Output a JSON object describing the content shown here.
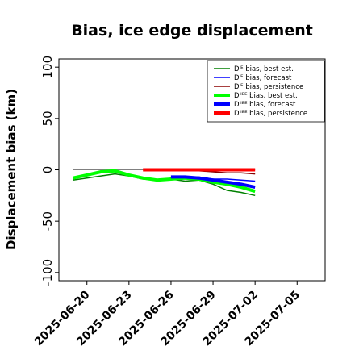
{
  "chart_data": {
    "type": "line",
    "title": "Bias, ice edge displacement",
    "xlabel": "",
    "ylabel": "Displacement bias (km)",
    "x_axis": {
      "type": "date",
      "range": [
        "2025-06-18",
        "2025-07-07"
      ],
      "ticks": [
        "2025-06-20",
        "2025-06-23",
        "2025-06-26",
        "2025-06-29",
        "2025-07-02",
        "2025-07-05"
      ],
      "highlight_tick": "2025-06-26",
      "highlight_color": "#228b22"
    },
    "y_axis": {
      "range": [
        -108,
        108
      ],
      "ticks": [
        -100,
        -50,
        0,
        50,
        100
      ]
    },
    "reference_line": {
      "y": 0,
      "color": "#808080"
    },
    "grid": false,
    "legend": {
      "placement": "top-right"
    },
    "series": [
      {
        "name": "Dᴵᴱ bias, best est.",
        "color": "#008000",
        "width": 1.5,
        "x": [
          "2025-06-19",
          "2025-06-20",
          "2025-06-21",
          "2025-06-22",
          "2025-06-23",
          "2025-06-24",
          "2025-06-25",
          "2025-06-26",
          "2025-06-27",
          "2025-06-28",
          "2025-06-29",
          "2025-06-30",
          "2025-07-01",
          "2025-07-02"
        ],
        "values": [
          -10,
          -8,
          -6,
          -4,
          -6,
          -9,
          -10,
          -9,
          -11,
          -10,
          -14,
          -20,
          -22,
          -25
        ]
      },
      {
        "name": "Dᴵᴱ bias, forecast",
        "color": "#0000ff",
        "width": 1.5,
        "x": [
          "2025-06-26",
          "2025-06-27",
          "2025-06-28",
          "2025-06-29",
          "2025-06-30",
          "2025-07-01",
          "2025-07-02"
        ],
        "values": [
          -8,
          -7,
          -7,
          -9,
          -9,
          -10,
          -11
        ]
      },
      {
        "name": "Dᴵᴱ bias, persistence",
        "color": "#8b0000",
        "width": 1.5,
        "x": [
          "2025-06-25",
          "2025-06-26",
          "2025-06-27",
          "2025-06-28",
          "2025-06-29",
          "2025-06-30",
          "2025-07-01",
          "2025-07-02"
        ],
        "values": [
          0,
          0,
          0,
          -1,
          -2,
          -3,
          -3,
          -4
        ]
      },
      {
        "name": "Dᴵᴵᴱᴱ bias, best est.",
        "color": "#00ff00",
        "width": 4,
        "x": [
          "2025-06-19",
          "2025-06-20",
          "2025-06-21",
          "2025-06-22",
          "2025-06-23",
          "2025-06-24",
          "2025-06-25",
          "2025-06-26",
          "2025-06-27",
          "2025-06-28",
          "2025-06-29",
          "2025-06-30",
          "2025-07-01",
          "2025-07-02"
        ],
        "values": [
          -8,
          -5,
          -2,
          -1,
          -5,
          -8,
          -10,
          -9,
          -8,
          -9,
          -12,
          -14,
          -17,
          -21
        ]
      },
      {
        "name": "Dᴵᴵᴱᴱ bias, forecast",
        "color": "#0000ff",
        "width": 4,
        "x": [
          "2025-06-26",
          "2025-06-27",
          "2025-06-28",
          "2025-06-29",
          "2025-06-30",
          "2025-07-01",
          "2025-07-02"
        ],
        "values": [
          -7,
          -7,
          -8,
          -10,
          -12,
          -14,
          -17
        ]
      },
      {
        "name": "Dᴵᴵᴱᴱ bias, persistence",
        "color": "#ff0000",
        "width": 4,
        "x": [
          "2025-06-24",
          "2025-06-25",
          "2025-06-26",
          "2025-06-27",
          "2025-06-28",
          "2025-06-29",
          "2025-06-30",
          "2025-07-01",
          "2025-07-02"
        ],
        "values": [
          0,
          0,
          0,
          0,
          0,
          0,
          0,
          0,
          0
        ]
      }
    ]
  }
}
